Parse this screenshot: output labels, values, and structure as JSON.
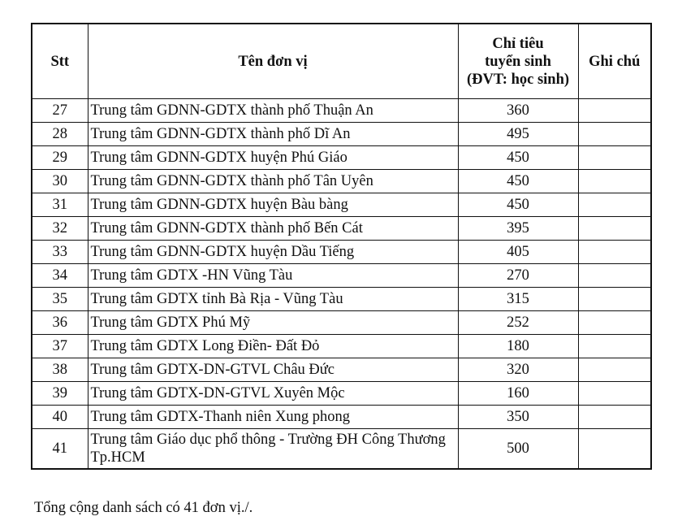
{
  "table": {
    "headers": {
      "stt": "Stt",
      "name": "Tên đơn vị",
      "quota_lines": [
        "Chỉ tiêu",
        "tuyển sinh",
        "(ĐVT: học sinh)"
      ],
      "note": "Ghi chú"
    },
    "rows": [
      {
        "stt": "27",
        "name": "Trung tâm GDNN-GDTX thành phố Thuận An",
        "quota": "360",
        "note": ""
      },
      {
        "stt": "28",
        "name": "Trung tâm GDNN-GDTX thành phố Dĩ An",
        "quota": "495",
        "note": ""
      },
      {
        "stt": "29",
        "name": "Trung tâm GDNN-GDTX huyện Phú Giáo",
        "quota": "450",
        "note": ""
      },
      {
        "stt": "30",
        "name": "Trung tâm GDNN-GDTX thành phố Tân Uyên",
        "quota": "450",
        "note": ""
      },
      {
        "stt": "31",
        "name": "Trung tâm GDNN-GDTX huyện Bàu bàng",
        "quota": "450",
        "note": ""
      },
      {
        "stt": "32",
        "name": "Trung tâm GDNN-GDTX thành phố Bến Cát",
        "quota": "395",
        "note": ""
      },
      {
        "stt": "33",
        "name": "Trung tâm GDNN-GDTX huyện Dầu Tiếng",
        "quota": "405",
        "note": ""
      },
      {
        "stt": "34",
        "name": "Trung tâm GDTX -HN Vũng Tàu",
        "quota": "270",
        "note": ""
      },
      {
        "stt": "35",
        "name": "Trung tâm GDTX tỉnh Bà Rịa - Vũng Tàu",
        "quota": "315",
        "note": ""
      },
      {
        "stt": "36",
        "name": "Trung tâm GDTX Phú Mỹ",
        "quota": "252",
        "note": ""
      },
      {
        "stt": "37",
        "name": "Trung tâm GDTX Long Điền- Đất Đỏ",
        "quota": "180",
        "note": ""
      },
      {
        "stt": "38",
        "name": "Trung tâm GDTX-DN-GTVL Châu Đức",
        "quota": "320",
        "note": ""
      },
      {
        "stt": "39",
        "name": "Trung tâm GDTX-DN-GTVL Xuyên Mộc",
        "quota": "160",
        "note": ""
      },
      {
        "stt": "40",
        "name": "Trung tâm GDTX-Thanh niên Xung phong",
        "quota": "350",
        "note": ""
      },
      {
        "stt": "41",
        "name": "Trung tâm Giáo dục phổ thông - Trường ĐH Công Thương Tp.HCM",
        "quota": "500",
        "note": ""
      }
    ]
  },
  "footer": {
    "summary": "Tổng cộng danh sách có 41 đơn vị./."
  }
}
